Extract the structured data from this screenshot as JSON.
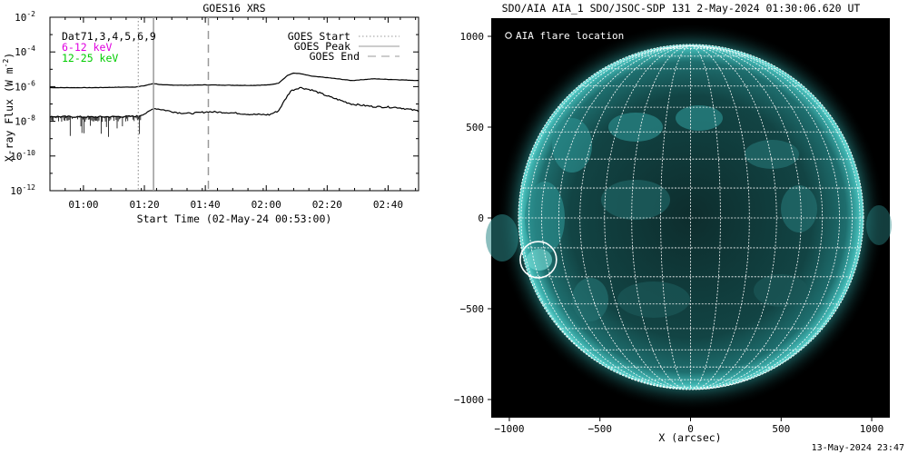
{
  "footer_timestamp": "13-May-2024 23:47",
  "chart_data": [
    {
      "type": "line",
      "title": "GOES16 XRS",
      "xlabel": "Start Time (02-May-24 00:53:00)",
      "ylabel": "X-ray Flux (W m",
      "ylabel_sup": "-2",
      "ylabel_close": ")",
      "yscale": "log",
      "ylim": [
        1e-12,
        0.01
      ],
      "yticks": [
        {
          "base": "10",
          "exp": "-2",
          "v": -2
        },
        {
          "base": "10",
          "exp": "-4",
          "v": -4
        },
        {
          "base": "10",
          "exp": "-6",
          "v": -6
        },
        {
          "base": "10",
          "exp": "-8",
          "v": -8
        },
        {
          "base": "10",
          "exp": "-10",
          "v": -10
        },
        {
          "base": "10",
          "exp": "-12",
          "v": -12
        }
      ],
      "xlim_minutes": [
        -4,
        117
      ],
      "xticks": [
        {
          "label": "01:00",
          "m": 7
        },
        {
          "label": "01:20",
          "m": 27
        },
        {
          "label": "01:40",
          "m": 47
        },
        {
          "label": "02:00",
          "m": 67
        },
        {
          "label": "02:20",
          "m": 87
        },
        {
          "label": "02:40",
          "m": 107
        }
      ],
      "annotations": [
        {
          "text": "Dat71,3,4,5,6,9",
          "color": "#000000"
        },
        {
          "text": "6-12 keV",
          "color": "#e000e0"
        },
        {
          "text": "12-25 keV",
          "color": "#00cc00"
        }
      ],
      "legend": [
        {
          "label": "GOES Start",
          "style": "dotted"
        },
        {
          "label": "GOES Peak",
          "style": "solid"
        },
        {
          "label": "GOES End",
          "style": "dashed"
        }
      ],
      "event_minutes": {
        "start": 25,
        "peak": 30,
        "end": 48
      },
      "series": [
        {
          "name": "long",
          "x": [
            -4,
            10,
            24,
            27,
            30,
            33,
            40,
            48,
            55,
            62,
            68,
            71,
            74,
            76,
            78,
            82,
            88,
            95,
            102,
            110,
            117
          ],
          "log_y": [
            -6.06,
            -6.06,
            -6.02,
            -5.95,
            -5.82,
            -5.9,
            -5.92,
            -5.9,
            -5.92,
            -5.93,
            -5.9,
            -5.8,
            -5.35,
            -5.22,
            -5.25,
            -5.4,
            -5.5,
            -5.65,
            -5.55,
            -5.6,
            -5.65
          ]
        },
        {
          "name": "short",
          "x": [
            -4,
            10,
            22,
            25,
            28,
            30,
            32,
            38,
            42,
            48,
            55,
            62,
            68,
            71,
            73,
            75,
            78,
            82,
            88,
            95,
            102,
            110,
            117
          ],
          "log_y": [
            -7.72,
            -7.75,
            -7.72,
            -7.7,
            -7.5,
            -7.25,
            -7.3,
            -7.5,
            -7.55,
            -7.45,
            -7.5,
            -7.6,
            -7.62,
            -7.4,
            -6.8,
            -6.25,
            -6.05,
            -6.2,
            -6.6,
            -7.0,
            -7.15,
            -7.2,
            -7.4
          ]
        }
      ]
    },
    {
      "type": "image",
      "title": "SDO/AIA AIA_1 SDO/JSOC-SDP 131  2-May-2024 01:30:06.620 UT",
      "xlabel": "X (arcsec)",
      "xlim": [
        -1100,
        1100
      ],
      "ylim": [
        -1100,
        1100
      ],
      "xticks": [
        -1000,
        -500,
        0,
        500,
        1000
      ],
      "yticks": [
        1000,
        500,
        0,
        -500,
        -1000
      ],
      "legend_text": "AIA flare location",
      "solar_radius_arcsec": 950,
      "flare_location": {
        "x": -840,
        "y": -230,
        "radius": 100
      }
    }
  ]
}
